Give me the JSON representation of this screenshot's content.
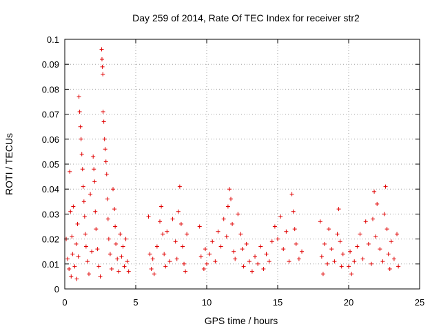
{
  "chart_data": {
    "type": "scatter",
    "title": "Day 259 of 2014, Rate Of TEC Index for receiver str2",
    "xlabel": "GPS time / hours",
    "ylabel": "ROTI / TECUs",
    "xlim": [
      0,
      25
    ],
    "ylim": [
      0,
      0.1
    ],
    "grid": true,
    "marker": "+",
    "colors": {
      "points": "#e00000",
      "grid": "#a0a0a0",
      "frame": "#000000"
    },
    "x_ticks": [
      {
        "value": 0,
        "label": "0"
      },
      {
        "value": 5,
        "label": "5"
      },
      {
        "value": 10,
        "label": "10"
      },
      {
        "value": 15,
        "label": "15"
      },
      {
        "value": 20,
        "label": "20"
      },
      {
        "value": 25,
        "label": "25"
      }
    ],
    "y_ticks": [
      {
        "value": 0,
        "label": "0"
      },
      {
        "value": 0.01,
        "label": "0.01"
      },
      {
        "value": 0.02,
        "label": "0.02"
      },
      {
        "value": 0.03,
        "label": "0.03"
      },
      {
        "value": 0.04,
        "label": "0.04"
      },
      {
        "value": 0.05,
        "label": "0.05"
      },
      {
        "value": 0.06,
        "label": "0.06"
      },
      {
        "value": 0.07,
        "label": "0.07"
      },
      {
        "value": 0.08,
        "label": "0.08"
      },
      {
        "value": 0.09,
        "label": "0.09"
      },
      {
        "value": 0.1,
        "label": "0.1"
      }
    ],
    "series": [
      {
        "name": "ROTI",
        "points": [
          [
            0.1,
            0.02
          ],
          [
            0.2,
            0.012
          ],
          [
            0.3,
            0.008
          ],
          [
            0.35,
            0.047
          ],
          [
            0.4,
            0.031
          ],
          [
            0.45,
            0.005
          ],
          [
            0.5,
            0.021
          ],
          [
            0.55,
            0.014
          ],
          [
            0.6,
            0.033
          ],
          [
            0.7,
            0.009
          ],
          [
            0.8,
            0.018
          ],
          [
            0.85,
            0.004
          ],
          [
            0.9,
            0.026
          ],
          [
            0.95,
            0.013
          ],
          [
            1.0,
            0.077
          ],
          [
            1.05,
            0.071
          ],
          [
            1.1,
            0.065
          ],
          [
            1.15,
            0.06
          ],
          [
            1.2,
            0.054
          ],
          [
            1.25,
            0.048
          ],
          [
            1.3,
            0.041
          ],
          [
            1.35,
            0.035
          ],
          [
            1.4,
            0.029
          ],
          [
            1.45,
            0.022
          ],
          [
            1.5,
            0.017
          ],
          [
            1.6,
            0.011
          ],
          [
            1.7,
            0.006
          ],
          [
            1.8,
            0.038
          ],
          [
            1.9,
            0.015
          ],
          [
            2.0,
            0.053
          ],
          [
            2.05,
            0.048
          ],
          [
            2.1,
            0.043
          ],
          [
            2.15,
            0.031
          ],
          [
            2.2,
            0.024
          ],
          [
            2.3,
            0.016
          ],
          [
            2.4,
            0.009
          ],
          [
            2.5,
            0.005
          ],
          [
            2.6,
            0.096
          ],
          [
            2.62,
            0.092
          ],
          [
            2.65,
            0.089
          ],
          [
            2.68,
            0.086
          ],
          [
            2.7,
            0.071
          ],
          [
            2.75,
            0.067
          ],
          [
            2.8,
            0.06
          ],
          [
            2.85,
            0.056
          ],
          [
            2.9,
            0.051
          ],
          [
            2.95,
            0.046
          ],
          [
            3.0,
            0.036
          ],
          [
            3.05,
            0.028
          ],
          [
            3.1,
            0.02
          ],
          [
            3.2,
            0.014
          ],
          [
            3.3,
            0.008
          ],
          [
            3.4,
            0.04
          ],
          [
            3.5,
            0.032
          ],
          [
            3.55,
            0.025
          ],
          [
            3.6,
            0.018
          ],
          [
            3.7,
            0.012
          ],
          [
            3.8,
            0.007
          ],
          [
            3.9,
            0.022
          ],
          [
            4.0,
            0.013
          ],
          [
            4.1,
            0.017
          ],
          [
            4.2,
            0.009
          ],
          [
            4.3,
            0.02
          ],
          [
            4.4,
            0.011
          ],
          [
            4.5,
            0.007
          ],
          [
            5.9,
            0.029
          ],
          [
            6.0,
            0.014
          ],
          [
            6.1,
            0.008
          ],
          [
            6.2,
            0.012
          ],
          [
            6.3,
            0.006
          ],
          [
            6.5,
            0.017
          ],
          [
            6.7,
            0.027
          ],
          [
            6.8,
            0.033
          ],
          [
            6.9,
            0.022
          ],
          [
            7.0,
            0.014
          ],
          [
            7.1,
            0.009
          ],
          [
            7.2,
            0.023
          ],
          [
            7.4,
            0.011
          ],
          [
            7.6,
            0.028
          ],
          [
            7.8,
            0.019
          ],
          [
            7.9,
            0.012
          ],
          [
            8.0,
            0.031
          ],
          [
            8.1,
            0.041
          ],
          [
            8.2,
            0.026
          ],
          [
            8.3,
            0.017
          ],
          [
            8.4,
            0.01
          ],
          [
            8.5,
            0.007
          ],
          [
            8.6,
            0.022
          ],
          [
            9.5,
            0.025
          ],
          [
            9.6,
            0.013
          ],
          [
            9.8,
            0.008
          ],
          [
            9.9,
            0.016
          ],
          [
            10.0,
            0.01
          ],
          [
            10.2,
            0.014
          ],
          [
            10.4,
            0.019
          ],
          [
            10.6,
            0.011
          ],
          [
            10.8,
            0.023
          ],
          [
            11.0,
            0.017
          ],
          [
            11.2,
            0.028
          ],
          [
            11.4,
            0.021
          ],
          [
            11.5,
            0.033
          ],
          [
            11.6,
            0.04
          ],
          [
            11.7,
            0.036
          ],
          [
            11.8,
            0.026
          ],
          [
            11.9,
            0.015
          ],
          [
            12.0,
            0.012
          ],
          [
            12.2,
            0.03
          ],
          [
            12.4,
            0.022
          ],
          [
            12.5,
            0.016
          ],
          [
            12.6,
            0.009
          ],
          [
            12.8,
            0.018
          ],
          [
            13.0,
            0.011
          ],
          [
            13.2,
            0.007
          ],
          [
            13.4,
            0.013
          ],
          [
            13.6,
            0.01
          ],
          [
            13.8,
            0.017
          ],
          [
            14.0,
            0.008
          ],
          [
            14.2,
            0.014
          ],
          [
            14.4,
            0.011
          ],
          [
            14.6,
            0.019
          ],
          [
            14.8,
            0.025
          ],
          [
            15.0,
            0.02
          ],
          [
            15.2,
            0.029
          ],
          [
            15.4,
            0.016
          ],
          [
            15.6,
            0.023
          ],
          [
            15.8,
            0.011
          ],
          [
            16.0,
            0.038
          ],
          [
            16.1,
            0.031
          ],
          [
            16.2,
            0.024
          ],
          [
            16.3,
            0.018
          ],
          [
            16.5,
            0.012
          ],
          [
            16.7,
            0.015
          ],
          [
            18.0,
            0.027
          ],
          [
            18.1,
            0.013
          ],
          [
            18.2,
            0.006
          ],
          [
            18.3,
            0.018
          ],
          [
            18.5,
            0.01
          ],
          [
            18.6,
            0.024
          ],
          [
            18.8,
            0.016
          ],
          [
            19.0,
            0.011
          ],
          [
            19.2,
            0.022
          ],
          [
            19.3,
            0.032
          ],
          [
            19.4,
            0.019
          ],
          [
            19.5,
            0.009
          ],
          [
            19.6,
            0.014
          ],
          [
            20.0,
            0.009
          ],
          [
            20.1,
            0.015
          ],
          [
            20.2,
            0.006
          ],
          [
            20.4,
            0.011
          ],
          [
            20.6,
            0.017
          ],
          [
            20.8,
            0.022
          ],
          [
            21.0,
            0.012
          ],
          [
            21.2,
            0.027
          ],
          [
            21.4,
            0.018
          ],
          [
            21.6,
            0.01
          ],
          [
            21.7,
            0.028
          ],
          [
            21.8,
            0.039
          ],
          [
            21.9,
            0.021
          ],
          [
            22.0,
            0.034
          ],
          [
            22.2,
            0.016
          ],
          [
            22.4,
            0.011
          ],
          [
            22.5,
            0.03
          ],
          [
            22.6,
            0.041
          ],
          [
            22.7,
            0.024
          ],
          [
            22.8,
            0.014
          ],
          [
            22.9,
            0.008
          ],
          [
            23.0,
            0.019
          ],
          [
            23.2,
            0.012
          ],
          [
            23.4,
            0.022
          ],
          [
            23.5,
            0.009
          ]
        ]
      }
    ]
  }
}
